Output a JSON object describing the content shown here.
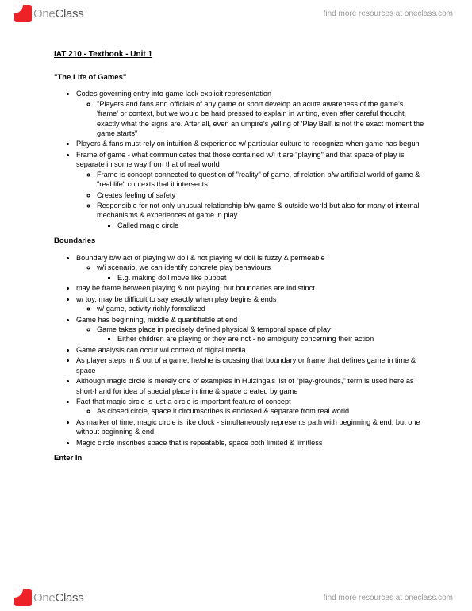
{
  "brand": {
    "name_part1": "One",
    "name_part2": "Class",
    "tagline": "find more resources at oneclass.com"
  },
  "doc": {
    "title": "IAT 210 - Textbook - Unit 1",
    "sections": [
      {
        "heading": "\"The Life of Games\"",
        "items": [
          {
            "text": "Codes governing entry into game lack explicit representation",
            "sub": [
              {
                "text": "\"Players and fans and officials of any game or sport develop an acute awareness of the game's 'frame' or context, but we would be hard pressed to explain in writing, even after careful thought, exactly what the signs are. After all, even an umpire's yelling of 'Play Ball' is not the exact moment the game starts\""
              }
            ]
          },
          {
            "text": "Players & fans must rely on intuition & experience w/ particular culture to recognize when game has begun"
          },
          {
            "text": "Frame of game - what communicates that those contained w/i it are \"playing\" and that space of play is separate in some way from that of real world",
            "sub": [
              {
                "text": "Frame is concept connected to question of \"reality\" of game, of relation b/w artificial world of game & \"real life\" contexts that it intersects"
              },
              {
                "text": "Creates feeling of safety"
              },
              {
                "text": "Responsible for not only unusual relationship b/w game & outside world but also for many of internal mechanisms & experiences of game in play",
                "sub": [
                  {
                    "text": "Called magic circle"
                  }
                ]
              }
            ]
          }
        ]
      },
      {
        "heading": "Boundaries",
        "items": [
          {
            "text": "Boundary b/w act of playing w/ doll & not playing w/ doll is fuzzy & permeable",
            "sub": [
              {
                "text": "w/i scenario, we can identify concrete play behaviours",
                "sub": [
                  {
                    "text": "E.g. making doll move like puppet"
                  }
                ]
              }
            ]
          },
          {
            "text": "may be frame between playing & not playing, but boundaries are indistinct"
          },
          {
            "text": "w/ toy, may be difficult to say exactly when play begins & ends",
            "sub": [
              {
                "text": "w/ game, activity richly formalized"
              }
            ]
          },
          {
            "text": "Game has beginning, middle & quantifiable at end",
            "sub": [
              {
                "text": "Game takes place in precisely defined physical & temporal space of play",
                "sub": [
                  {
                    "text": "Either children are playing or they are not - no ambiguity concerning their action"
                  }
                ]
              }
            ]
          },
          {
            "text": "Game analysis can occur w/i context of digital media"
          },
          {
            "text": "As player steps in & out of a game, he/she is crossing that boundary or frame that defines game in time & space"
          },
          {
            "text": "Although magic circle is merely one of examples in Huizinga's list of \"play-grounds,\" term is used here as short-hand for idea of special place in time & space created by game"
          },
          {
            "text": "Fact that magic circle is just a circle is important feature of concept",
            "sub": [
              {
                "text": "As closed circle, space it circumscribes is enclosed & separate from real world"
              }
            ]
          },
          {
            "text": "As marker of time, magic circle is like clock - simultaneously represents path with beginning & end, but one without beginning & end"
          },
          {
            "text": "Magic circle inscribes space that is repeatable, space both limited & limitless"
          }
        ]
      },
      {
        "heading": "Enter In",
        "items": []
      }
    ]
  }
}
